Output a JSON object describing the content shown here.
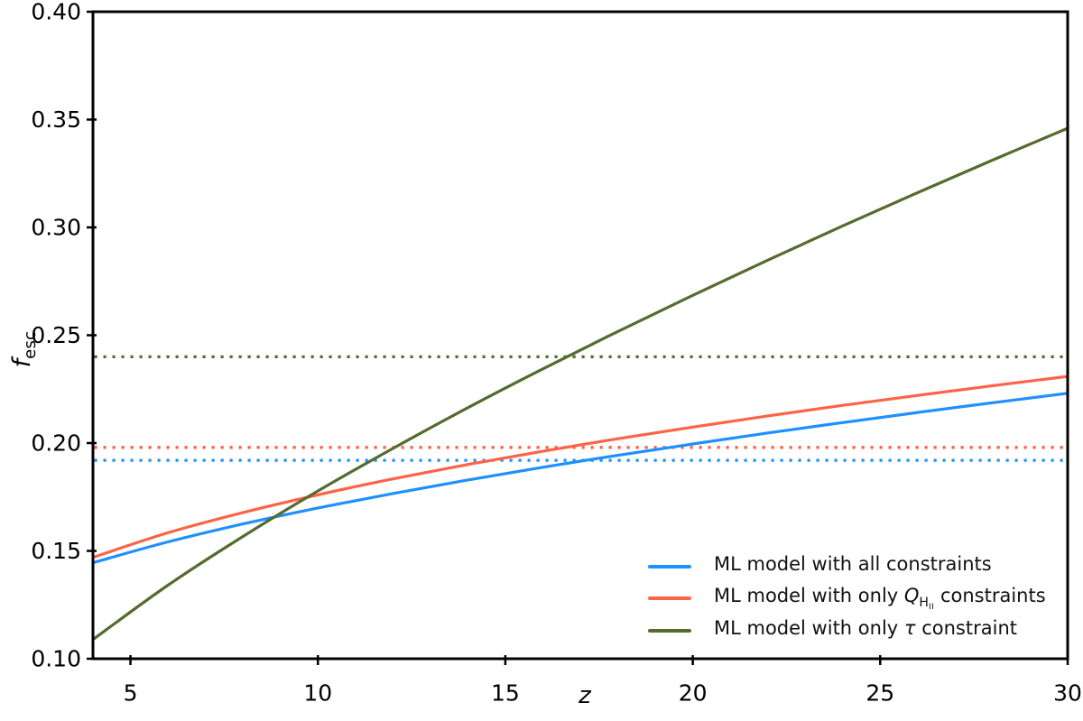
{
  "chart_data": {
    "type": "line",
    "title": "",
    "xlabel": "z",
    "ylabel": "f_esc",
    "xlim": [
      4,
      30
    ],
    "ylim": [
      0.1,
      0.4
    ],
    "xticks": [
      5,
      10,
      15,
      20,
      25,
      30
    ],
    "yticks": [
      0.1,
      0.15,
      0.2,
      0.25,
      0.3,
      0.35,
      0.4
    ],
    "grid": false,
    "legend_position": "lower right",
    "x": [
      4,
      6,
      8,
      10,
      12,
      14,
      16,
      18,
      20,
      22,
      24,
      26,
      28,
      30
    ],
    "series": [
      {
        "name": "ML model with all constraints",
        "color": "#1E90FF",
        "style": "solid",
        "values": [
          0.1445,
          0.1542,
          0.1625,
          0.1699,
          0.1766,
          0.1829,
          0.1888,
          0.1943,
          0.1996,
          0.2047,
          0.2095,
          0.2142,
          0.2187,
          0.2231
        ]
      },
      {
        "name": "ML model with only Q_HII constraints",
        "color": "#FF6347",
        "style": "solid",
        "values": [
          0.147,
          0.1584,
          0.1678,
          0.176,
          0.1834,
          0.1901,
          0.1962,
          0.202,
          0.2074,
          0.2126,
          0.2175,
          0.2221,
          0.2266,
          0.2309
        ]
      },
      {
        "name": "ML model with only tau constraint",
        "color": "#556B2F",
        "style": "solid",
        "values": [
          0.1089,
          0.1341,
          0.1567,
          0.1778,
          0.1975,
          0.2164,
          0.2344,
          0.2517,
          0.2685,
          0.2848,
          0.3007,
          0.3161,
          0.3312,
          0.346
        ]
      }
    ],
    "reference_lines": [
      {
        "name": "all-constraints dotted level",
        "value": 0.192,
        "color": "#1E90FF",
        "style": "dotted"
      },
      {
        "name": "Q_HII-only dotted level",
        "value": 0.198,
        "color": "#FF6347",
        "style": "dotted"
      },
      {
        "name": "tau-only dotted level",
        "value": 0.24,
        "color": "#556B2F",
        "style": "dotted"
      }
    ]
  },
  "axes": {
    "xlabel": "z",
    "ylabel_main": "f",
    "ylabel_sub": "esc"
  },
  "legend": {
    "items": [
      {
        "color": "#1E90FF",
        "parts": {
          "prefix": "ML model with all constraints",
          "math": "",
          "sub1": "",
          "sub2": "",
          "suffix": ""
        }
      },
      {
        "color": "#FF6347",
        "parts": {
          "prefix": "ML model with only ",
          "math": "Q",
          "sub1": "H",
          "sub2": "II",
          "suffix": " constraints"
        }
      },
      {
        "color": "#556B2F",
        "parts": {
          "prefix": "ML model with only ",
          "math": "τ",
          "sub1": "",
          "sub2": "",
          "suffix": " constraint"
        }
      }
    ]
  },
  "colors": {
    "blue": "#1E90FF",
    "red": "#FF6347",
    "green": "#556B2F",
    "axis": "#000000",
    "background": "#FFFFFF"
  }
}
